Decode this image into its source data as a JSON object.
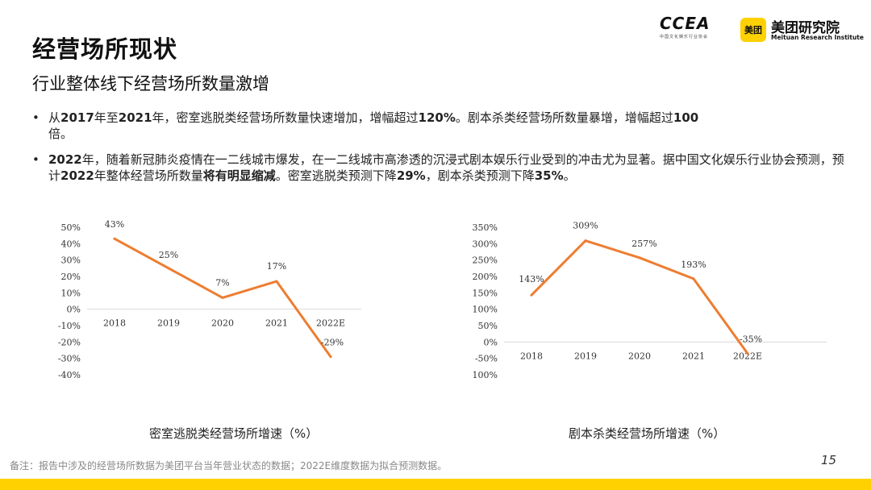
{
  "header": {
    "title": "经营场所现状",
    "subtitle": "行业整体线下经营场所数量激增"
  },
  "logos": {
    "ccea_text": "CCEA",
    "ccea_sub": "中国文化娱乐行业协会",
    "meituan_badge": "美团",
    "meituan_name": "美团研究院",
    "meituan_en": "Meituan Research Institute"
  },
  "bullets": [
    {
      "p1": "从",
      "b1": "2017",
      "p2": "年至",
      "b2": "2021",
      "p3": "年，密室逃脱类经营场所数量快速增加，增幅超过",
      "b3": "120%",
      "p4": "。剧本杀类经营场所数量暴增，增幅超过",
      "b4": "100",
      "p5": "倍。"
    },
    {
      "b1": "2022",
      "p1": "年，随着新冠肺炎疫情在一二线城市爆发，在一二线城市高渗透的沉浸式剧本娱乐行业受到的冲击尤为显著。据中国文化娱乐行业协会预测，预计",
      "b2": "2022",
      "p2": "年整体经营场所数量",
      "b3": "将有明显缩减",
      "p3": "。密室逃脱类预测下降",
      "b4": "29%",
      "p4": "，剧本杀类预测下降",
      "b5": "35%",
      "p5": "。"
    }
  ],
  "captions": {
    "chart1": "密室逃脱类经营场所增速（%）",
    "chart2": "剧本杀类经营场所增速（%）"
  },
  "footer": {
    "note": "备注：报告中涉及的经营场所数据为美团平台当年营业状态的数据；2022E维度数据为拟合预测数据。",
    "page": "15"
  },
  "colors": {
    "line": "#ed7d31",
    "axis": "#d9d9d9",
    "accent": "#ffd100"
  },
  "chart_data": [
    {
      "type": "line",
      "title": "密室逃脱类经营场所增速（%）",
      "categories": [
        "2018",
        "2019",
        "2020",
        "2021",
        "2022E"
      ],
      "values": [
        43,
        25,
        7,
        17,
        -29
      ],
      "data_labels": [
        "43%",
        "25%",
        "7%",
        "17%",
        "-29%"
      ],
      "yticks": [
        "50%",
        "40%",
        "30%",
        "20%",
        "10%",
        "0%",
        "-10%",
        "-20%",
        "-30%",
        "-40%"
      ],
      "ylim": [
        -40,
        50
      ],
      "ystep": 10,
      "grid": false,
      "legend": "none"
    },
    {
      "type": "line",
      "title": "剧本杀类经营场所增速（%）",
      "categories": [
        "2018",
        "2019",
        "2020",
        "2021",
        "2022E"
      ],
      "values": [
        143,
        309,
        257,
        193,
        -35
      ],
      "data_labels": [
        "143%",
        "309%",
        "257%",
        "193%",
        "-35%"
      ],
      "yticks": [
        "350%",
        "300%",
        "250%",
        "200%",
        "150%",
        "100%",
        "50%",
        "0%",
        "-50%",
        "-100%"
      ],
      "ylim": [
        -100,
        350
      ],
      "ystep": 50,
      "grid": false,
      "legend": "none"
    }
  ]
}
